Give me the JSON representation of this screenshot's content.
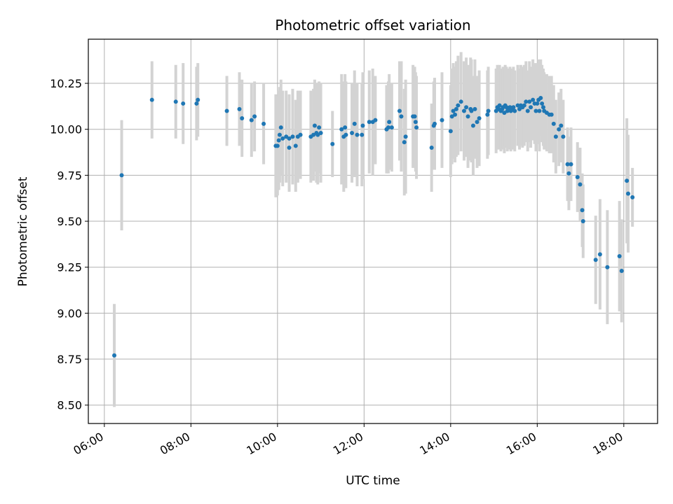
{
  "chart_data": {
    "type": "scatter",
    "title": "Photometric offset variation",
    "xlabel": "UTC time",
    "ylabel": "Photometric offset",
    "x_unit": "hours (UTC)",
    "xlim": [
      5.63,
      18.78
    ],
    "ylim": [
      8.4,
      10.49
    ],
    "xticks": [
      6,
      8,
      10,
      12,
      14,
      16,
      18
    ],
    "xtick_labels": [
      "06:00",
      "08:00",
      "10:00",
      "12:00",
      "14:00",
      "16:00",
      "18:00"
    ],
    "yticks": [
      8.5,
      8.75,
      9.0,
      9.25,
      9.5,
      9.75,
      10.0,
      10.25
    ],
    "ytick_labels": [
      "8.50",
      "8.75",
      "9.00",
      "9.25",
      "9.50",
      "9.75",
      "10.00",
      "10.25"
    ],
    "grid": true,
    "point_color": "#1f77b4",
    "errorbar_color": "#d3d3d3",
    "points": [
      [
        6.23,
        8.77,
        0.28
      ],
      [
        6.4,
        9.75,
        0.3
      ],
      [
        7.1,
        10.16,
        0.21
      ],
      [
        7.65,
        10.15,
        0.2
      ],
      [
        7.82,
        10.14,
        0.22
      ],
      [
        8.13,
        10.14,
        0.2
      ],
      [
        8.16,
        10.16,
        0.2
      ],
      [
        8.83,
        10.1,
        0.19
      ],
      [
        9.12,
        10.11,
        0.2
      ],
      [
        9.18,
        10.06,
        0.21
      ],
      [
        9.4,
        10.05,
        0.2
      ],
      [
        9.47,
        10.07,
        0.19
      ],
      [
        9.68,
        10.03,
        0.22
      ],
      [
        9.96,
        9.91,
        0.28
      ],
      [
        10.0,
        9.91,
        0.27
      ],
      [
        10.03,
        9.94,
        0.27
      ],
      [
        10.05,
        9.97,
        0.26
      ],
      [
        10.08,
        10.01,
        0.26
      ],
      [
        10.12,
        9.95,
        0.26
      ],
      [
        10.2,
        9.96,
        0.25
      ],
      [
        10.27,
        9.95,
        0.24
      ],
      [
        10.27,
        9.9,
        0.24
      ],
      [
        10.35,
        9.96,
        0.26
      ],
      [
        10.42,
        9.91,
        0.25
      ],
      [
        10.47,
        9.96,
        0.25
      ],
      [
        10.53,
        9.97,
        0.24
      ],
      [
        10.77,
        9.96,
        0.25
      ],
      [
        10.83,
        9.97,
        0.25
      ],
      [
        10.86,
        10.02,
        0.25
      ],
      [
        10.9,
        9.98,
        0.27
      ],
      [
        10.93,
        9.97,
        0.27
      ],
      [
        10.96,
        10.01,
        0.25
      ],
      [
        11.0,
        9.98,
        0.27
      ],
      [
        11.27,
        9.92,
        0.18
      ],
      [
        11.48,
        10.0,
        0.3
      ],
      [
        11.53,
        9.96,
        0.3
      ],
      [
        11.56,
        10.01,
        0.29
      ],
      [
        11.58,
        9.97,
        0.29
      ],
      [
        11.72,
        9.98,
        0.27
      ],
      [
        11.78,
        10.03,
        0.29
      ],
      [
        11.84,
        9.97,
        0.28
      ],
      [
        11.95,
        9.97,
        0.28
      ],
      [
        11.97,
        10.02,
        0.29
      ],
      [
        12.12,
        10.04,
        0.28
      ],
      [
        12.2,
        10.04,
        0.29
      ],
      [
        12.26,
        10.05,
        0.24
      ],
      [
        12.52,
        10.0,
        0.24
      ],
      [
        12.56,
        10.01,
        0.25
      ],
      [
        12.58,
        10.04,
        0.26
      ],
      [
        12.64,
        10.01,
        0.24
      ],
      [
        12.82,
        10.1,
        0.27
      ],
      [
        12.86,
        10.07,
        0.3
      ],
      [
        12.93,
        9.93,
        0.29
      ],
      [
        12.96,
        9.96,
        0.31
      ],
      [
        13.13,
        10.07,
        0.28
      ],
      [
        13.17,
        10.07,
        0.27
      ],
      [
        13.19,
        10.04,
        0.27
      ],
      [
        13.21,
        10.01,
        0.28
      ],
      [
        13.56,
        9.9,
        0.24
      ],
      [
        13.61,
        10.02,
        0.24
      ],
      [
        13.63,
        10.03,
        0.25
      ],
      [
        13.8,
        10.05,
        0.26
      ],
      [
        14.0,
        9.99,
        0.25
      ],
      [
        14.03,
        10.07,
        0.26
      ],
      [
        14.06,
        10.1,
        0.26
      ],
      [
        14.1,
        10.08,
        0.26
      ],
      [
        14.13,
        10.11,
        0.26
      ],
      [
        14.17,
        10.13,
        0.27
      ],
      [
        14.24,
        10.15,
        0.27
      ],
      [
        14.31,
        10.1,
        0.27
      ],
      [
        14.36,
        10.12,
        0.27
      ],
      [
        14.4,
        10.07,
        0.28
      ],
      [
        14.46,
        10.11,
        0.28
      ],
      [
        14.48,
        10.1,
        0.28
      ],
      [
        14.52,
        10.02,
        0.27
      ],
      [
        14.56,
        10.11,
        0.27
      ],
      [
        14.61,
        10.04,
        0.25
      ],
      [
        14.66,
        10.06,
        0.26
      ],
      [
        14.85,
        10.08,
        0.24
      ],
      [
        14.87,
        10.1,
        0.24
      ],
      [
        15.05,
        10.1,
        0.23
      ],
      [
        15.08,
        10.12,
        0.23
      ],
      [
        15.11,
        10.11,
        0.22
      ],
      [
        15.13,
        10.13,
        0.22
      ],
      [
        15.16,
        10.1,
        0.22
      ],
      [
        15.19,
        10.11,
        0.22
      ],
      [
        15.21,
        10.12,
        0.22
      ],
      [
        15.24,
        10.09,
        0.22
      ],
      [
        15.26,
        10.13,
        0.22
      ],
      [
        15.29,
        10.12,
        0.22
      ],
      [
        15.31,
        10.1,
        0.22
      ],
      [
        15.34,
        10.11,
        0.22
      ],
      [
        15.37,
        10.12,
        0.22
      ],
      [
        15.39,
        10.1,
        0.22
      ],
      [
        15.42,
        10.11,
        0.22
      ],
      [
        15.45,
        10.12,
        0.22
      ],
      [
        15.48,
        10.1,
        0.22
      ],
      [
        15.55,
        10.13,
        0.22
      ],
      [
        15.59,
        10.11,
        0.22
      ],
      [
        15.62,
        10.13,
        0.22
      ],
      [
        15.66,
        10.12,
        0.22
      ],
      [
        15.7,
        10.13,
        0.22
      ],
      [
        15.74,
        10.15,
        0.22
      ],
      [
        15.78,
        10.1,
        0.22
      ],
      [
        15.82,
        10.15,
        0.22
      ],
      [
        15.85,
        10.12,
        0.22
      ],
      [
        15.9,
        10.16,
        0.22
      ],
      [
        15.94,
        10.14,
        0.22
      ],
      [
        15.97,
        10.1,
        0.22
      ],
      [
        16.0,
        10.14,
        0.22
      ],
      [
        16.03,
        10.16,
        0.22
      ],
      [
        16.05,
        10.1,
        0.22
      ],
      [
        16.08,
        10.17,
        0.21
      ],
      [
        16.11,
        10.14,
        0.21
      ],
      [
        16.14,
        10.12,
        0.21
      ],
      [
        16.16,
        10.1,
        0.21
      ],
      [
        16.22,
        10.09,
        0.21
      ],
      [
        16.28,
        10.08,
        0.21
      ],
      [
        16.33,
        10.08,
        0.21
      ],
      [
        16.38,
        10.03,
        0.21
      ],
      [
        16.43,
        9.96,
        0.2
      ],
      [
        16.5,
        10.0,
        0.2
      ],
      [
        16.55,
        10.02,
        0.2
      ],
      [
        16.6,
        9.96,
        0.2
      ],
      [
        16.7,
        9.81,
        0.2
      ],
      [
        16.73,
        9.76,
        0.2
      ],
      [
        16.78,
        9.81,
        0.2
      ],
      [
        16.93,
        9.74,
        0.19
      ],
      [
        16.99,
        9.7,
        0.2
      ],
      [
        17.04,
        9.56,
        0.2
      ],
      [
        17.06,
        9.5,
        0.2
      ],
      [
        17.35,
        9.29,
        0.24
      ],
      [
        17.45,
        9.32,
        0.3
      ],
      [
        17.62,
        9.25,
        0.31
      ],
      [
        17.9,
        9.31,
        0.3
      ],
      [
        17.95,
        9.23,
        0.28
      ],
      [
        18.07,
        9.72,
        0.34
      ],
      [
        18.1,
        9.65,
        0.32
      ],
      [
        18.2,
        9.63,
        0.16
      ]
    ]
  }
}
